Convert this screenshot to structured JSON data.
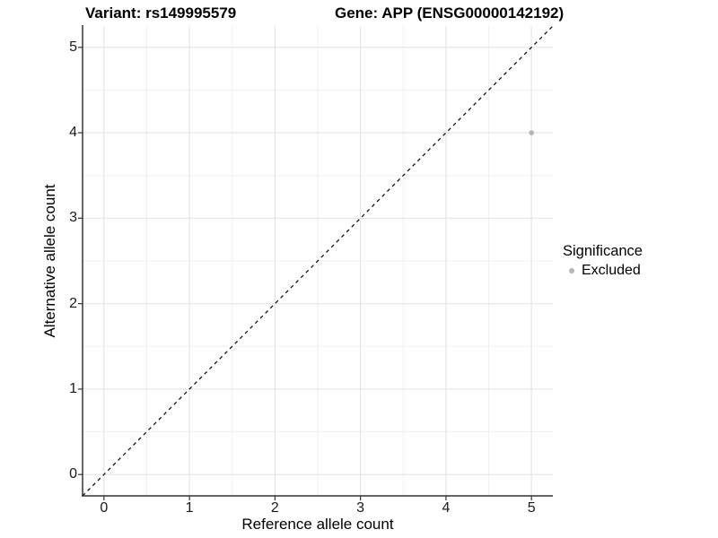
{
  "titles": {
    "left": "Variant: rs149995579",
    "right": "Gene: APP (ENSG00000142192)"
  },
  "chart_data": {
    "type": "scatter",
    "xlabel": "Reference allele count",
    "ylabel": "Alternative allele count",
    "xlim": [
      -0.25,
      5.25
    ],
    "ylim": [
      -0.25,
      5.25
    ],
    "x_ticks": [
      0,
      1,
      2,
      3,
      4,
      5
    ],
    "y_ticks": [
      0,
      1,
      2,
      3,
      4,
      5
    ],
    "minor_ticks": [
      0.5,
      1.5,
      2.5,
      3.5,
      4.5
    ],
    "grid": true,
    "points": [
      {
        "x": 5,
        "y": 4,
        "series": "Excluded"
      }
    ],
    "reference_line": {
      "type": "identity",
      "style": "dashed"
    },
    "legend": {
      "title": "Significance",
      "position": "right",
      "items": [
        {
          "label": "Excluded",
          "color": "#b5b5b5"
        }
      ]
    },
    "colors": {
      "point": "#b5b5b5",
      "axis": "#333333",
      "grid_major": "#e4e4e4",
      "grid_minor": "#f0f0f0",
      "reference_line": "#000000"
    }
  }
}
